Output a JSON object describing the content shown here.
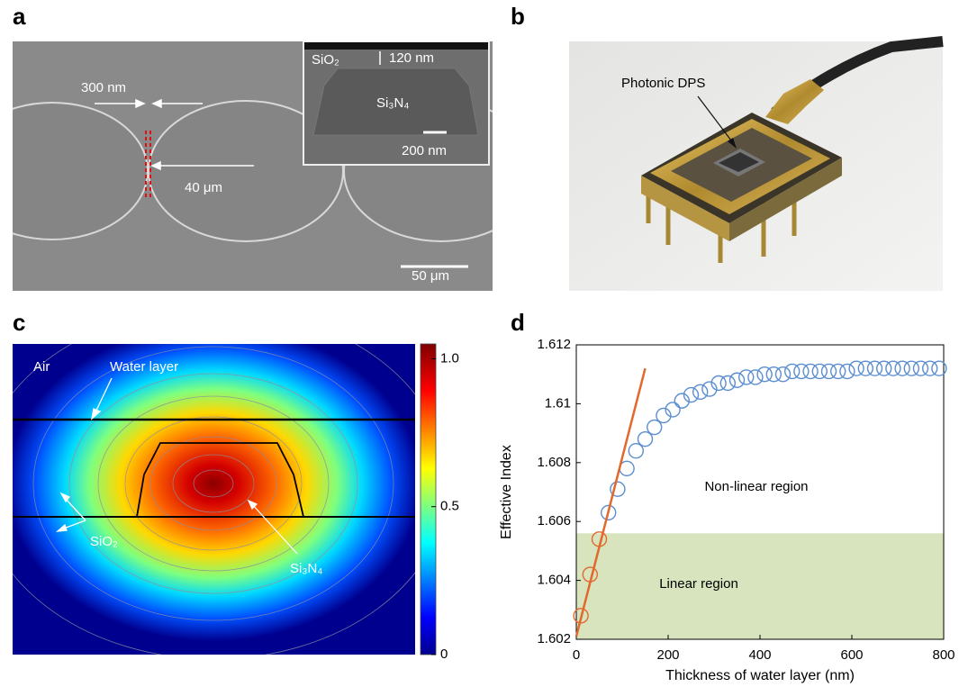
{
  "panel_labels": [
    "a",
    "b",
    "c",
    "d"
  ],
  "panel_a": {
    "gap": "300 nm",
    "period": "40 μm",
    "scale_bar": "50 μm",
    "inset": {
      "cladding": "SiO₂",
      "thickness": "120 nm",
      "core": "Si₃N₄",
      "scale_bar": "200 nm"
    }
  },
  "panel_b": {
    "annotation": "Photonic DPS"
  },
  "panel_c": {
    "labels": {
      "air": "Air",
      "water": "Water layer",
      "cladding": "SiO₂",
      "core": "Si₃N₄"
    },
    "colorbar": {
      "lim": [
        0,
        1.05
      ],
      "ticks": [
        0,
        0.5,
        {
          "value": 1,
          "label": "1.0"
        }
      ]
    }
  },
  "chart_data": {
    "type": "scatter",
    "xlabel": "Thickness of water layer (nm)",
    "ylabel": "Effective Index",
    "annotations": [
      "Non-linear region",
      "Linear region"
    ],
    "xlim": [
      0,
      800
    ],
    "ylim": [
      1.602,
      1.612
    ],
    "xticks": [
      0,
      200,
      400,
      600,
      800
    ],
    "yticks": [
      1.602,
      1.604,
      1.606,
      1.608,
      1.61,
      1.612
    ],
    "shaded_region": {
      "ylim": [
        1.602,
        1.6056
      ],
      "color": "#d7e4bd"
    },
    "series": [
      {
        "type": "scatter",
        "color": "#e2682c",
        "x": [
          10,
          30,
          50
        ],
        "values": [
          1.6028,
          1.6042,
          1.6054
        ]
      },
      {
        "type": "scatter",
        "color": "#5b8ed0",
        "x": [
          70,
          90,
          110,
          130,
          150,
          170,
          190,
          210,
          230,
          250,
          270,
          290,
          310,
          330,
          350,
          370,
          390,
          410,
          430,
          450,
          470,
          490,
          510,
          530,
          550,
          570,
          590,
          610,
          630,
          650,
          670,
          690,
          710,
          730,
          750,
          770,
          790
        ],
        "values": [
          1.6063,
          1.6071,
          1.6078,
          1.6084,
          1.6088,
          1.6092,
          1.6096,
          1.6098,
          1.6101,
          1.6103,
          1.6104,
          1.6105,
          1.6107,
          1.6107,
          1.6108,
          1.6109,
          1.6109,
          1.611,
          1.611,
          1.611,
          1.6111,
          1.6111,
          1.6111,
          1.6111,
          1.6111,
          1.6111,
          1.6111,
          1.6112,
          1.6112,
          1.6112,
          1.6112,
          1.6112,
          1.6112,
          1.6112,
          1.6112,
          1.6112,
          1.6112
        ]
      },
      {
        "type": "line",
        "color": "#e2682c",
        "x": [
          0,
          150
        ],
        "values": [
          1.6021,
          1.6112
        ]
      }
    ]
  }
}
